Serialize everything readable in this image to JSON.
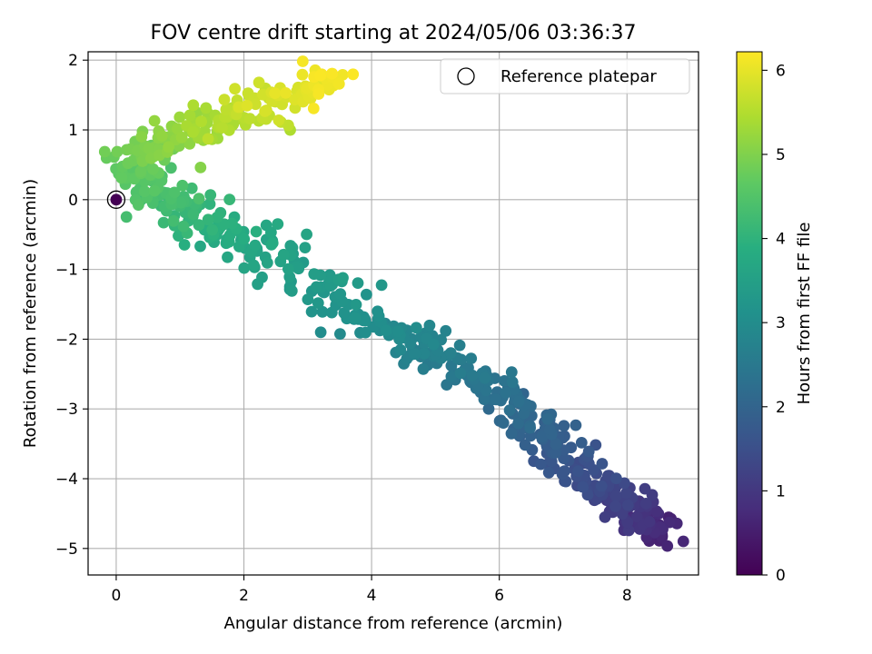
{
  "chart_data": {
    "type": "scatter",
    "title": "FOV centre drift starting at 2024/05/06 03:36:37",
    "xlabel": "Angular distance from reference (arcmin)",
    "ylabel": "Rotation from reference (arcmin)",
    "xlim": [
      -0.44,
      9.12
    ],
    "ylim": [
      -5.38,
      2.12
    ],
    "xticks": [
      "0",
      "2",
      "4",
      "6",
      "8"
    ],
    "yticks": [
      "−5",
      "−4",
      "−3",
      "−2",
      "−1",
      "0",
      "1",
      "2"
    ],
    "grid": true,
    "legend": {
      "position": "top-right",
      "entries": [
        "Reference platepar"
      ]
    },
    "colorbar": {
      "label": "Hours from first FF file",
      "colormap": "viridis",
      "range": [
        0,
        6.22
      ],
      "ticks": [
        "0",
        "1",
        "2",
        "3",
        "4",
        "5",
        "6"
      ]
    },
    "reference_point": {
      "x": 0,
      "y": 0,
      "hours": 0
    },
    "trend": [
      {
        "hours": 0.6,
        "x": 8.55,
        "y": -4.75
      },
      {
        "hours": 1.0,
        "x": 8.1,
        "y": -4.45
      },
      {
        "hours": 1.3,
        "x": 7.7,
        "y": -4.2
      },
      {
        "hours": 1.8,
        "x": 6.8,
        "y": -3.5
      },
      {
        "hours": 2.2,
        "x": 6.2,
        "y": -3.0
      },
      {
        "hours": 2.6,
        "x": 5.2,
        "y": -2.3
      },
      {
        "hours": 3.0,
        "x": 4.1,
        "y": -1.8
      },
      {
        "hours": 3.5,
        "x": 2.6,
        "y": -0.9
      },
      {
        "hours": 3.9,
        "x": 1.6,
        "y": -0.4
      },
      {
        "hours": 4.3,
        "x": 0.8,
        "y": 0.0
      },
      {
        "hours": 4.6,
        "x": 0.3,
        "y": 0.3
      },
      {
        "hours": 4.9,
        "x": 0.4,
        "y": 0.7
      },
      {
        "hours": 5.2,
        "x": 1.0,
        "y": 0.95
      },
      {
        "hours": 5.5,
        "x": 1.8,
        "y": 1.15
      },
      {
        "hours": 5.8,
        "x": 2.5,
        "y": 1.4
      },
      {
        "hours": 6.1,
        "x": 3.2,
        "y": 1.7
      }
    ],
    "spread": [
      {
        "hours": 0.6,
        "sx": 0.14,
        "sy": 0.12
      },
      {
        "hours": 1.3,
        "sx": 0.2,
        "sy": 0.14
      },
      {
        "hours": 2.0,
        "sx": 0.28,
        "sy": 0.14
      },
      {
        "hours": 3.0,
        "sx": 0.32,
        "sy": 0.1
      },
      {
        "hours": 4.0,
        "sx": 0.26,
        "sy": 0.14
      },
      {
        "hours": 5.0,
        "sx": 0.24,
        "sy": 0.12
      },
      {
        "hours": 6.1,
        "sx": 0.26,
        "sy": 0.14
      }
    ],
    "n_points": 700,
    "hours_range": [
      0.55,
      6.2
    ]
  }
}
